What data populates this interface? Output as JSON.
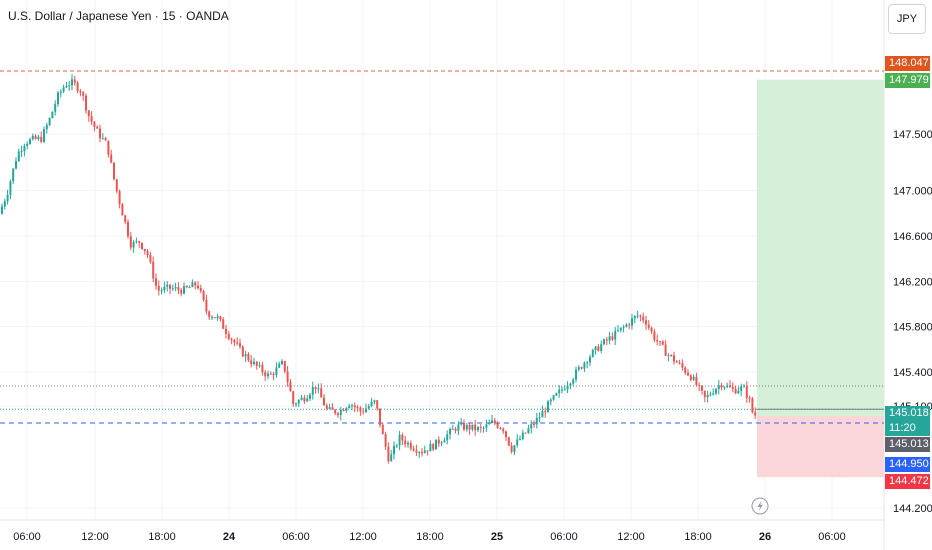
{
  "header": {
    "title": "U.S. Dollar / Japanese Yen · 15 · OANDA",
    "currency": "JPY"
  },
  "colors": {
    "up": "#26a69a",
    "down": "#ef5350",
    "target_zone": "#d6efd9",
    "stop_zone": "#fbd6d9",
    "high_line": "#e8632f",
    "entry_line": "#2962ff",
    "grid": "#f0f3fa"
  },
  "price_tags": [
    {
      "id": "high",
      "text": "148.047",
      "value": 148.047,
      "bg": "#e0541e",
      "fg": "#ffffff"
    },
    {
      "id": "target",
      "text": "147.979",
      "value": 147.979,
      "bg": "#4caf50",
      "fg": "#ffffff"
    },
    {
      "id": "last",
      "text": "145.018",
      "value": 145.018,
      "bg": "#26a69a",
      "fg": "#ffffff",
      "countdown": "11:20"
    },
    {
      "id": "mid",
      "text": "145.013",
      "value": 145.013,
      "bg": "#5d606b",
      "fg": "#ffffff"
    },
    {
      "id": "entry",
      "text": "144.950",
      "value": 144.95,
      "bg": "#2962ff",
      "fg": "#ffffff"
    },
    {
      "id": "stop",
      "text": "144.472",
      "value": 144.472,
      "bg": "#f23645",
      "fg": "#ffffff"
    }
  ],
  "chart_data": {
    "type": "candlestick",
    "title": "U.S. Dollar / Japanese Yen · 15 · OANDA",
    "y_ticks": [
      "147.500",
      "147.000",
      "146.600",
      "146.200",
      "145.800",
      "145.400",
      "145.100",
      "144.200"
    ],
    "y_tick_values": [
      147.5,
      147.0,
      146.6,
      146.2,
      145.8,
      145.4,
      145.1,
      144.2
    ],
    "x_ticks": [
      "06:00",
      "12:00",
      "18:00",
      "24",
      "06:00",
      "12:00",
      "18:00",
      "25",
      "06:00",
      "12:00",
      "18:00",
      "26",
      "06:00"
    ],
    "x_tick_positions": [
      27,
      95,
      162,
      229,
      296,
      363,
      430,
      497,
      564,
      631,
      698,
      765,
      832
    ],
    "bold_x_ticks": [
      "24",
      "25",
      "26"
    ],
    "high_price": 148.047,
    "position": {
      "entry": 144.95,
      "target": 147.979,
      "stop": 144.472,
      "last": 145.018
    },
    "series": [
      {
        "name": "USDJPY",
        "keypoints": [
          [
            0,
            146.75
          ],
          [
            10,
            146.98
          ],
          [
            20,
            147.32
          ],
          [
            28,
            147.43
          ],
          [
            36,
            147.45
          ],
          [
            44,
            147.46
          ],
          [
            52,
            147.62
          ],
          [
            60,
            147.82
          ],
          [
            68,
            147.94
          ],
          [
            76,
            147.95
          ],
          [
            84,
            147.88
          ],
          [
            92,
            147.65
          ],
          [
            100,
            147.52
          ],
          [
            110,
            147.4
          ],
          [
            118,
            147.05
          ],
          [
            126,
            146.78
          ],
          [
            134,
            146.52
          ],
          [
            142,
            146.55
          ],
          [
            150,
            146.45
          ],
          [
            160,
            146.12
          ],
          [
            172,
            146.14
          ],
          [
            186,
            146.12
          ],
          [
            200,
            146.18
          ],
          [
            210,
            145.92
          ],
          [
            220,
            145.88
          ],
          [
            232,
            145.72
          ],
          [
            244,
            145.58
          ],
          [
            258,
            145.46
          ],
          [
            272,
            145.36
          ],
          [
            286,
            145.48
          ],
          [
            296,
            145.12
          ],
          [
            308,
            145.18
          ],
          [
            318,
            145.28
          ],
          [
            330,
            145.06
          ],
          [
            342,
            145.05
          ],
          [
            352,
            145.13
          ],
          [
            364,
            145.05
          ],
          [
            378,
            145.14
          ],
          [
            386,
            144.82
          ],
          [
            392,
            144.62
          ],
          [
            402,
            144.82
          ],
          [
            414,
            144.75
          ],
          [
            424,
            144.7
          ],
          [
            436,
            144.75
          ],
          [
            448,
            144.83
          ],
          [
            460,
            144.92
          ],
          [
            472,
            144.91
          ],
          [
            484,
            144.89
          ],
          [
            496,
            144.96
          ],
          [
            506,
            144.9
          ],
          [
            514,
            144.72
          ],
          [
            526,
            144.84
          ],
          [
            540,
            144.98
          ],
          [
            552,
            145.12
          ],
          [
            564,
            145.24
          ],
          [
            576,
            145.36
          ],
          [
            590,
            145.52
          ],
          [
            604,
            145.64
          ],
          [
            616,
            145.72
          ],
          [
            630,
            145.82
          ],
          [
            640,
            145.9
          ],
          [
            648,
            145.86
          ],
          [
            656,
            145.72
          ],
          [
            668,
            145.58
          ],
          [
            680,
            145.48
          ],
          [
            694,
            145.36
          ],
          [
            708,
            145.16
          ],
          [
            716,
            145.24
          ],
          [
            724,
            145.3
          ],
          [
            736,
            145.24
          ],
          [
            746,
            145.26
          ],
          [
            752,
            145.16
          ],
          [
            756,
            145.02
          ]
        ]
      }
    ]
  },
  "footer": {
    "lightning_icon": "lightning-icon"
  }
}
